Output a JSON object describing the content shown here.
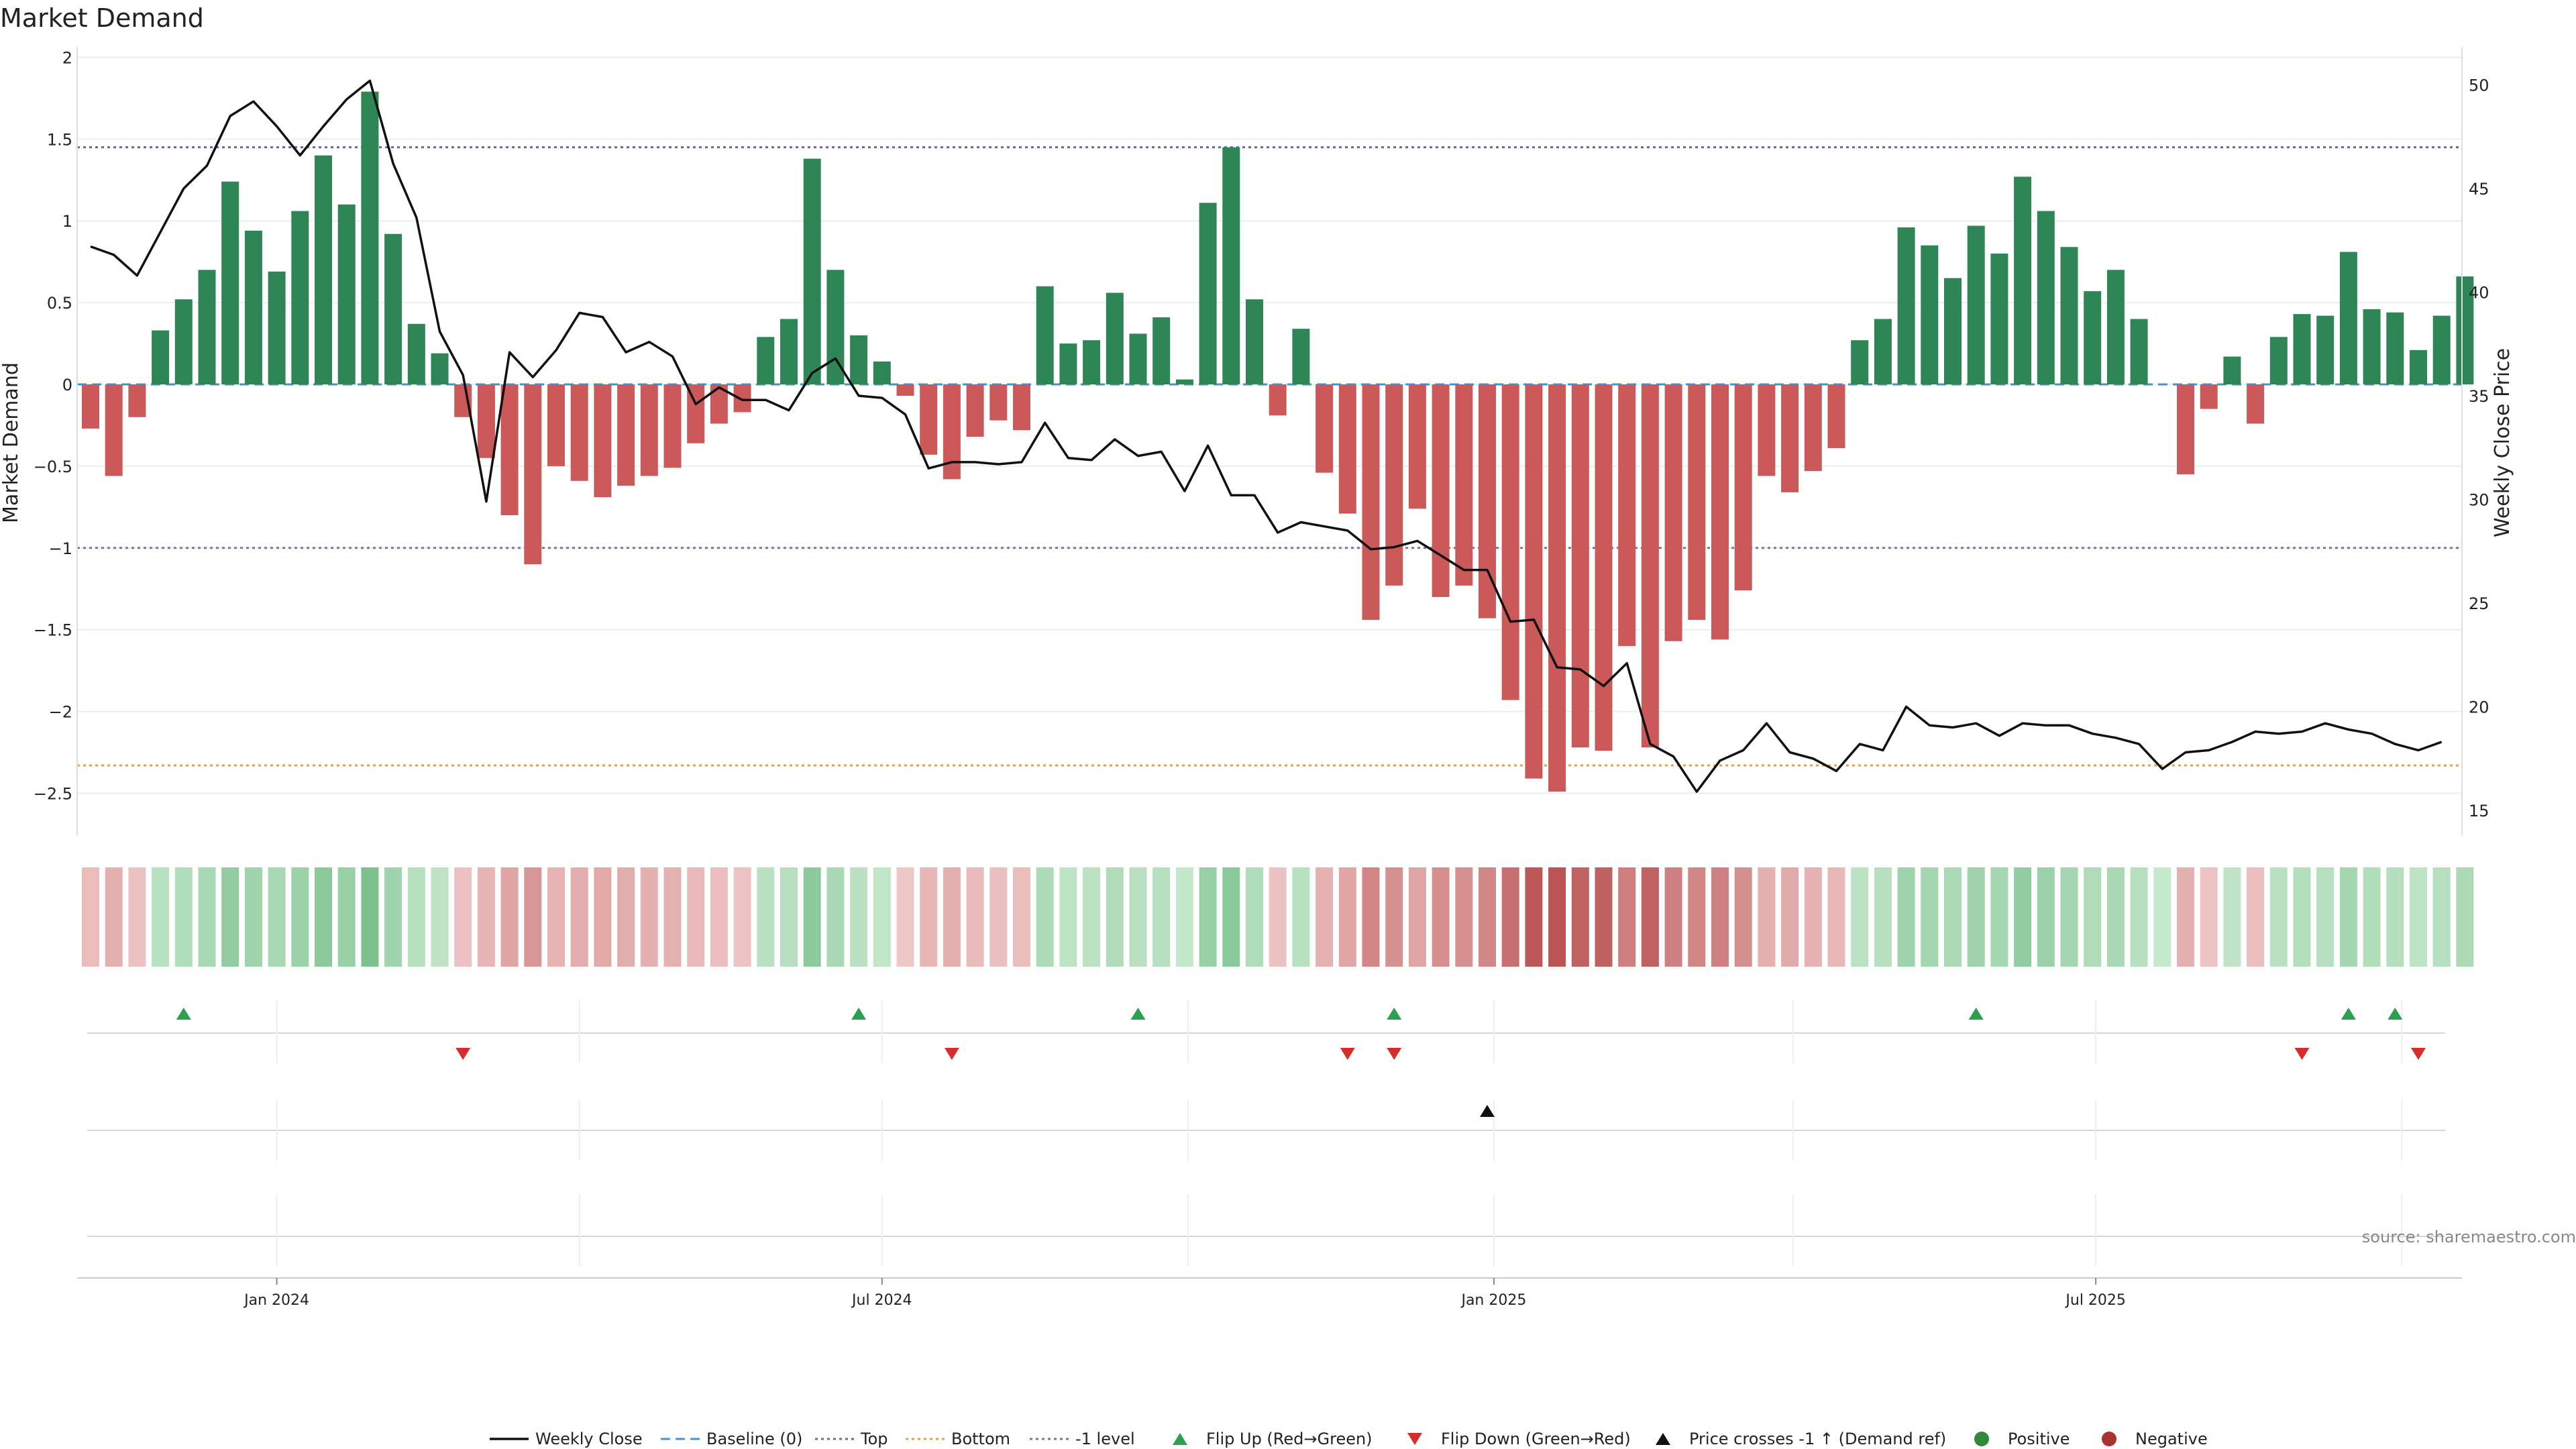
{
  "chart_data": {
    "type": "bar",
    "title": "Market Demand",
    "ylabel": "Market Demand",
    "y2label": "Weekly Close Price",
    "ylim": [
      -2.7,
      2.05
    ],
    "y2lim": [
      14,
      51
    ],
    "yticks": [
      2,
      1.5,
      1,
      0.5,
      0,
      -0.5,
      -1,
      -1.5,
      -2,
      -2.5
    ],
    "ytick_labels": [
      "2",
      "1.5",
      "1",
      "0.5",
      "0",
      "−0.5",
      "−1",
      "−1.5",
      "−2",
      "−2.5"
    ],
    "y2ticks": [
      50,
      45,
      40,
      35,
      30,
      25,
      20,
      15
    ],
    "y2tick_labels": [
      "50",
      "45",
      "40",
      "35",
      "30",
      "25",
      "20",
      "15"
    ],
    "x_start": "2023-11-06",
    "x_step_days": 7,
    "xticks": [
      {
        "date": "2024-01-01",
        "label": "Jan 2024"
      },
      {
        "date": "2024-07-01",
        "label": "Jul 2024"
      },
      {
        "date": "2025-01-01",
        "label": "Jan 2025"
      },
      {
        "date": "2025-07-01",
        "label": "Jul 2025"
      }
    ],
    "demand": [
      -0.27,
      -0.56,
      -0.2,
      0.33,
      0.52,
      0.7,
      1.24,
      0.94,
      0.69,
      1.06,
      1.4,
      1.1,
      1.79,
      0.92,
      0.37,
      0.19,
      -0.2,
      -0.45,
      -0.8,
      -1.1,
      -0.5,
      -0.59,
      -0.69,
      -0.62,
      -0.56,
      -0.51,
      -0.36,
      -0.24,
      -0.17,
      0.29,
      0.4,
      1.38,
      0.7,
      0.3,
      0.14,
      -0.07,
      -0.43,
      -0.58,
      -0.32,
      -0.22,
      -0.28,
      0.6,
      0.25,
      0.27,
      0.56,
      0.31,
      0.41,
      0.03,
      1.11,
      1.45,
      0.52,
      -0.19,
      0.34,
      -0.54,
      -0.79,
      -1.44,
      -1.23,
      -0.76,
      -1.3,
      -1.23,
      -1.43,
      -1.93,
      -2.41,
      -2.49,
      -2.22,
      -2.24,
      -1.6,
      -2.22,
      -1.57,
      -1.44,
      -1.56,
      -1.26,
      -0.56,
      -0.66,
      -0.53,
      -0.39,
      0.27,
      0.4,
      0.96,
      0.85,
      0.65,
      0.97,
      0.8,
      1.27,
      1.06,
      0.84,
      0.57,
      0.7,
      0.4,
      0.0,
      -0.55,
      -0.15,
      0.17,
      -0.24,
      0.29,
      0.43,
      0.42,
      0.81,
      0.46,
      0.44,
      0.21,
      0.42,
      0.66
    ],
    "close": [
      42.2,
      41.8,
      40.8,
      42.9,
      45.0,
      46.1,
      48.5,
      49.2,
      48.0,
      46.6,
      48.0,
      49.3,
      50.2,
      46.2,
      43.6,
      38.1,
      36.0,
      29.9,
      37.1,
      35.9,
      37.2,
      39.0,
      38.8,
      37.1,
      37.6,
      36.9,
      34.6,
      35.4,
      34.8,
      34.8,
      34.3,
      36.1,
      36.8,
      35.0,
      34.9,
      34.1,
      31.5,
      31.8,
      31.8,
      31.7,
      31.8,
      33.7,
      32.0,
      31.9,
      32.9,
      32.1,
      32.3,
      30.4,
      32.6,
      30.2,
      30.2,
      28.4,
      28.9,
      28.7,
      28.5,
      27.6,
      27.7,
      28.0,
      27.3,
      26.6,
      26.6,
      24.1,
      24.2,
      21.9,
      21.8,
      21.0,
      22.1,
      18.2,
      17.6,
      15.9,
      17.4,
      17.9,
      19.2,
      17.8,
      17.5,
      16.9,
      18.2,
      17.9,
      20.0,
      19.1,
      19.0,
      19.2,
      18.6,
      19.2,
      19.1,
      19.1,
      18.7,
      18.5,
      18.2,
      17.0,
      17.8,
      17.9,
      18.3,
      18.8,
      18.7,
      18.8,
      19.2,
      18.9,
      18.7,
      18.2,
      17.9,
      18.3
    ],
    "top_level": 1.45,
    "bottom_level": -2.33,
    "minus_one_level": -1,
    "flip_up_dates": [
      "2023-12-04",
      "2024-06-24",
      "2024-09-16",
      "2024-12-02",
      "2025-05-26",
      "2025-09-15",
      "2025-09-29"
    ],
    "flip_down_dates": [
      "2024-02-26",
      "2024-07-22",
      "2024-11-18",
      "2024-12-02",
      "2025-09-01",
      "2025-10-06"
    ],
    "price_cross_dates": [
      "2024-12-30"
    ],
    "colors": {
      "positive": "#2e8657",
      "negative": "#cc5959",
      "close_line": "#111111",
      "baseline": "#4b8fcf",
      "top": "#6a6aa6",
      "bottom": "#e6a23c",
      "minus_one": "#777799",
      "flip_up": "#2ca050",
      "flip_down": "#d62c2c",
      "price_cross": "#111111",
      "positive_dot": "#2e8b3a",
      "negative_dot": "#a83232"
    },
    "legend": [
      {
        "label": "Weekly Close",
        "kind": "line"
      },
      {
        "label": "Baseline (0)",
        "kind": "dashed"
      },
      {
        "label": "Top",
        "kind": "dotted-top"
      },
      {
        "label": "Bottom",
        "kind": "dotted-bottom"
      },
      {
        "label": "-1 level",
        "kind": "dotted-minus"
      },
      {
        "label": "Flip Up (Red→Green)",
        "kind": "tri-up"
      },
      {
        "label": "Flip Down (Green→Red)",
        "kind": "tri-down"
      },
      {
        "label": "Price crosses -1 ↑ (Demand ref)",
        "kind": "tri-cross"
      },
      {
        "label": "Positive",
        "kind": "dot-pos"
      },
      {
        "label": "Negative",
        "kind": "dot-neg"
      }
    ],
    "source": "source: sharemaestro.com"
  }
}
